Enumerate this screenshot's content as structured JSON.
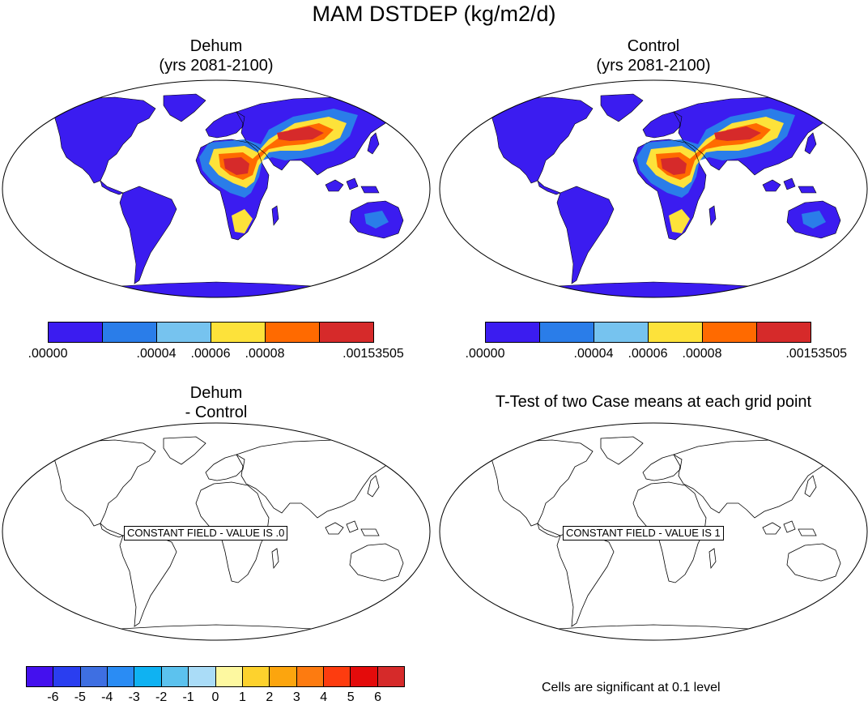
{
  "figure": {
    "title": "MAM DSTDEP (kg/m2/d)"
  },
  "panels": {
    "dehum": {
      "title_line1": "Dehum",
      "title_line2": "(yrs 2081-2100)"
    },
    "control": {
      "title_line1": "Control",
      "title_line2": "(yrs 2081-2100)"
    },
    "difference": {
      "title_line1": "Dehum",
      "title_line2": "- Control",
      "constant_field_label": "CONSTANT FIELD - VALUE IS .0"
    },
    "ttest": {
      "title": "T-Test of two Case means at each grid point",
      "constant_field_label": "CONSTANT FIELD - VALUE IS 1",
      "note": "Cells are significant at 0.1 level"
    }
  },
  "colorbars": {
    "dust": {
      "colors": [
        "#3b1cf0",
        "#2a7de9",
        "#76c3ef",
        "#fde23a",
        "#ff6a00",
        "#d62a2a"
      ],
      "labels": [
        ".00000",
        ".00004",
        ".00006",
        ".00008",
        ".00153505"
      ]
    },
    "diff": {
      "colors": [
        "#4410ee",
        "#2a3ef0",
        "#3e6fe2",
        "#2a8cf4",
        "#0fb2f2",
        "#5cc2ee",
        "#aadcf7",
        "#fdf8a0",
        "#fdd22d",
        "#fca50e",
        "#fd7b10",
        "#fd3c0f",
        "#e40b0b",
        "#d62a2a"
      ],
      "labels": [
        "-6",
        "-5",
        "-4",
        "-3",
        "-2",
        "-1",
        "0",
        "1",
        "2",
        "3",
        "4",
        "5",
        "6"
      ]
    }
  },
  "chart_data": {
    "type": "heatmap",
    "title": "MAM DSTDEP (kg/m2/d)",
    "panels": [
      {
        "name": "Dehum (yrs 2081-2100)",
        "levels": [
          0.0,
          4e-05,
          6e-05,
          8e-05,
          0.00153505
        ]
      },
      {
        "name": "Control (yrs 2081-2100)",
        "levels": [
          0.0,
          4e-05,
          6e-05,
          8e-05,
          0.00153505
        ]
      },
      {
        "name": "Dehum - Control",
        "constant_value": 0.0,
        "levels": [
          -6,
          -5,
          -4,
          -3,
          -2,
          -1,
          0,
          1,
          2,
          3,
          4,
          5,
          6
        ]
      },
      {
        "name": "T-Test of two Case means at each grid point",
        "constant_value": 1,
        "significance_level": 0.1
      }
    ]
  }
}
